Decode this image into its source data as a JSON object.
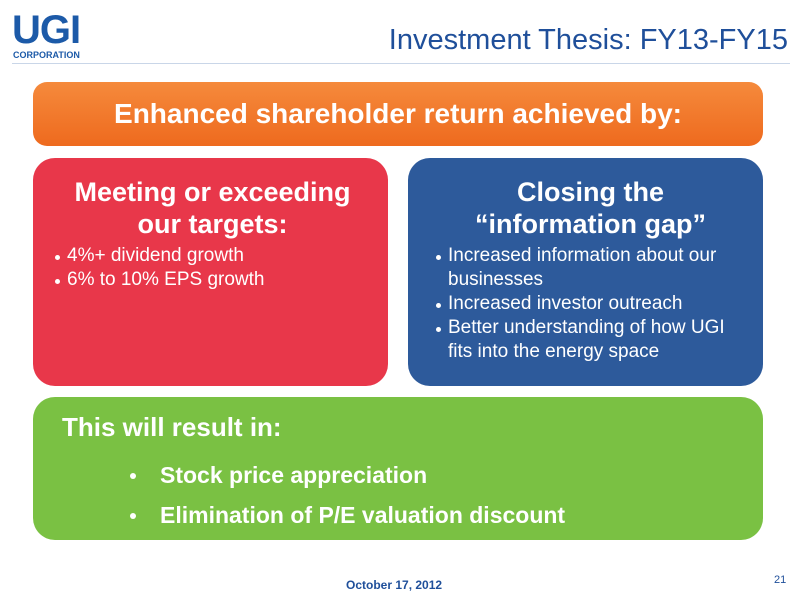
{
  "logo": {
    "name": "UGI",
    "subtitle": "CORPORATION"
  },
  "title": "Investment Thesis: FY13-FY15",
  "banner": "Enhanced shareholder return achieved by:",
  "left_box": {
    "heading": "Meeting or exceeding our targets:",
    "bullets": [
      "4%+ dividend growth",
      "6% to 10% EPS growth"
    ]
  },
  "right_box": {
    "heading": "Closing the “information gap”",
    "bullets": [
      "Increased information about our businesses",
      "Increased investor outreach",
      "Better understanding of how UGI fits into the energy space"
    ]
  },
  "bottom_box": {
    "heading": "This will result in:",
    "bullets": [
      "Stock price appreciation",
      "Elimination of P/E valuation discount"
    ]
  },
  "footer": {
    "date": "October 17, 2012",
    "page": 21
  }
}
